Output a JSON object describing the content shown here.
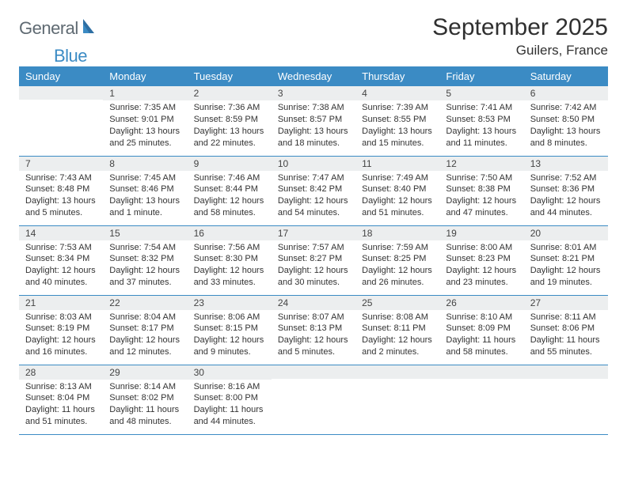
{
  "brand": {
    "part1": "General",
    "part2": "Blue"
  },
  "title": "September 2025",
  "location": "Guilers, France",
  "colors": {
    "header_bg": "#3b8bc4",
    "header_text": "#ffffff",
    "daynum_bg": "#eceeef",
    "row_divider": "#3b8bc4",
    "logo_gray": "#5f6a72",
    "logo_blue": "#3b8bc4",
    "text": "#333333"
  },
  "layout": {
    "cols": 7,
    "weekday_fontsize": 13,
    "daynum_fontsize": 12,
    "body_fontsize": 11
  },
  "weekdays": [
    "Sunday",
    "Monday",
    "Tuesday",
    "Wednesday",
    "Thursday",
    "Friday",
    "Saturday"
  ],
  "weeks": [
    [
      {
        "day": "",
        "lines": []
      },
      {
        "day": "1",
        "lines": [
          "Sunrise: 7:35 AM",
          "Sunset: 9:01 PM",
          "Daylight: 13 hours",
          "and 25 minutes."
        ]
      },
      {
        "day": "2",
        "lines": [
          "Sunrise: 7:36 AM",
          "Sunset: 8:59 PM",
          "Daylight: 13 hours",
          "and 22 minutes."
        ]
      },
      {
        "day": "3",
        "lines": [
          "Sunrise: 7:38 AM",
          "Sunset: 8:57 PM",
          "Daylight: 13 hours",
          "and 18 minutes."
        ]
      },
      {
        "day": "4",
        "lines": [
          "Sunrise: 7:39 AM",
          "Sunset: 8:55 PM",
          "Daylight: 13 hours",
          "and 15 minutes."
        ]
      },
      {
        "day": "5",
        "lines": [
          "Sunrise: 7:41 AM",
          "Sunset: 8:53 PM",
          "Daylight: 13 hours",
          "and 11 minutes."
        ]
      },
      {
        "day": "6",
        "lines": [
          "Sunrise: 7:42 AM",
          "Sunset: 8:50 PM",
          "Daylight: 13 hours",
          "and 8 minutes."
        ]
      }
    ],
    [
      {
        "day": "7",
        "lines": [
          "Sunrise: 7:43 AM",
          "Sunset: 8:48 PM",
          "Daylight: 13 hours",
          "and 5 minutes."
        ]
      },
      {
        "day": "8",
        "lines": [
          "Sunrise: 7:45 AM",
          "Sunset: 8:46 PM",
          "Daylight: 13 hours",
          "and 1 minute."
        ]
      },
      {
        "day": "9",
        "lines": [
          "Sunrise: 7:46 AM",
          "Sunset: 8:44 PM",
          "Daylight: 12 hours",
          "and 58 minutes."
        ]
      },
      {
        "day": "10",
        "lines": [
          "Sunrise: 7:47 AM",
          "Sunset: 8:42 PM",
          "Daylight: 12 hours",
          "and 54 minutes."
        ]
      },
      {
        "day": "11",
        "lines": [
          "Sunrise: 7:49 AM",
          "Sunset: 8:40 PM",
          "Daylight: 12 hours",
          "and 51 minutes."
        ]
      },
      {
        "day": "12",
        "lines": [
          "Sunrise: 7:50 AM",
          "Sunset: 8:38 PM",
          "Daylight: 12 hours",
          "and 47 minutes."
        ]
      },
      {
        "day": "13",
        "lines": [
          "Sunrise: 7:52 AM",
          "Sunset: 8:36 PM",
          "Daylight: 12 hours",
          "and 44 minutes."
        ]
      }
    ],
    [
      {
        "day": "14",
        "lines": [
          "Sunrise: 7:53 AM",
          "Sunset: 8:34 PM",
          "Daylight: 12 hours",
          "and 40 minutes."
        ]
      },
      {
        "day": "15",
        "lines": [
          "Sunrise: 7:54 AM",
          "Sunset: 8:32 PM",
          "Daylight: 12 hours",
          "and 37 minutes."
        ]
      },
      {
        "day": "16",
        "lines": [
          "Sunrise: 7:56 AM",
          "Sunset: 8:30 PM",
          "Daylight: 12 hours",
          "and 33 minutes."
        ]
      },
      {
        "day": "17",
        "lines": [
          "Sunrise: 7:57 AM",
          "Sunset: 8:27 PM",
          "Daylight: 12 hours",
          "and 30 minutes."
        ]
      },
      {
        "day": "18",
        "lines": [
          "Sunrise: 7:59 AM",
          "Sunset: 8:25 PM",
          "Daylight: 12 hours",
          "and 26 minutes."
        ]
      },
      {
        "day": "19",
        "lines": [
          "Sunrise: 8:00 AM",
          "Sunset: 8:23 PM",
          "Daylight: 12 hours",
          "and 23 minutes."
        ]
      },
      {
        "day": "20",
        "lines": [
          "Sunrise: 8:01 AM",
          "Sunset: 8:21 PM",
          "Daylight: 12 hours",
          "and 19 minutes."
        ]
      }
    ],
    [
      {
        "day": "21",
        "lines": [
          "Sunrise: 8:03 AM",
          "Sunset: 8:19 PM",
          "Daylight: 12 hours",
          "and 16 minutes."
        ]
      },
      {
        "day": "22",
        "lines": [
          "Sunrise: 8:04 AM",
          "Sunset: 8:17 PM",
          "Daylight: 12 hours",
          "and 12 minutes."
        ]
      },
      {
        "day": "23",
        "lines": [
          "Sunrise: 8:06 AM",
          "Sunset: 8:15 PM",
          "Daylight: 12 hours",
          "and 9 minutes."
        ]
      },
      {
        "day": "24",
        "lines": [
          "Sunrise: 8:07 AM",
          "Sunset: 8:13 PM",
          "Daylight: 12 hours",
          "and 5 minutes."
        ]
      },
      {
        "day": "25",
        "lines": [
          "Sunrise: 8:08 AM",
          "Sunset: 8:11 PM",
          "Daylight: 12 hours",
          "and 2 minutes."
        ]
      },
      {
        "day": "26",
        "lines": [
          "Sunrise: 8:10 AM",
          "Sunset: 8:09 PM",
          "Daylight: 11 hours",
          "and 58 minutes."
        ]
      },
      {
        "day": "27",
        "lines": [
          "Sunrise: 8:11 AM",
          "Sunset: 8:06 PM",
          "Daylight: 11 hours",
          "and 55 minutes."
        ]
      }
    ],
    [
      {
        "day": "28",
        "lines": [
          "Sunrise: 8:13 AM",
          "Sunset: 8:04 PM",
          "Daylight: 11 hours",
          "and 51 minutes."
        ]
      },
      {
        "day": "29",
        "lines": [
          "Sunrise: 8:14 AM",
          "Sunset: 8:02 PM",
          "Daylight: 11 hours",
          "and 48 minutes."
        ]
      },
      {
        "day": "30",
        "lines": [
          "Sunrise: 8:16 AM",
          "Sunset: 8:00 PM",
          "Daylight: 11 hours",
          "and 44 minutes."
        ]
      },
      {
        "day": "",
        "lines": []
      },
      {
        "day": "",
        "lines": []
      },
      {
        "day": "",
        "lines": []
      },
      {
        "day": "",
        "lines": []
      }
    ]
  ]
}
